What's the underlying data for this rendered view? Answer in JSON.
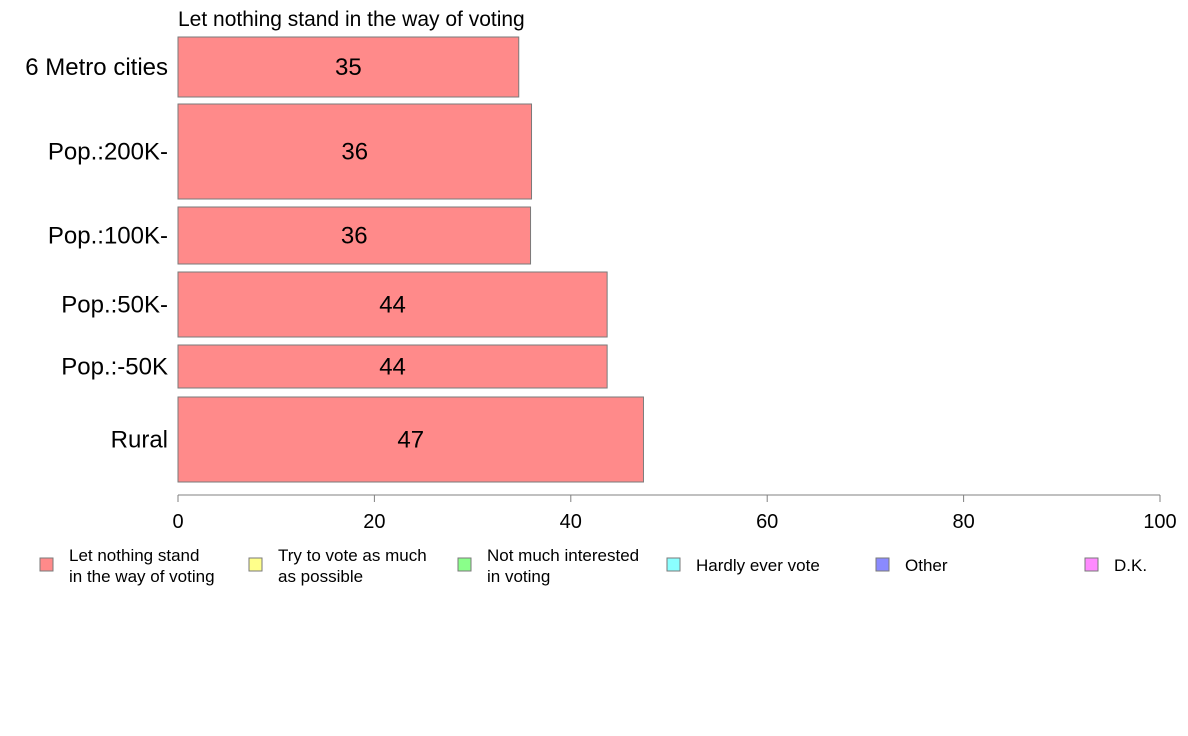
{
  "chart_data": {
    "type": "bar",
    "orientation": "horizontal",
    "stacked": true,
    "title": "Let nothing stand in the way of voting",
    "categories": [
      "6 Metro cities",
      "Pop.:200K-",
      "Pop.:100K-",
      "Pop.:50K-",
      "Pop.:-50K",
      "Rural"
    ],
    "series": [
      {
        "name": "Let nothing stand in the way of voting",
        "legend_lines": [
          "Let nothing stand",
          "in the way of voting"
        ],
        "color": "#ff8a8a",
        "values": [
          34.7,
          36.0,
          35.9,
          43.7,
          43.7,
          47.4
        ],
        "labels": [
          "35",
          "36",
          "36",
          "44",
          "44",
          "47"
        ]
      }
    ],
    "legend": [
      {
        "lines": [
          "Let nothing stand",
          "in the way of voting"
        ],
        "color": "#ff8a8a"
      },
      {
        "lines": [
          "Try to vote as much",
          "as possible"
        ],
        "color": "#ffff8a"
      },
      {
        "lines": [
          "Not much interested",
          "in voting"
        ],
        "color": "#8aff8a"
      },
      {
        "lines": [
          "Hardly ever vote"
        ],
        "color": "#8affff"
      },
      {
        "lines": [
          "Other"
        ],
        "color": "#8a8aff"
      },
      {
        "lines": [
          "D.K."
        ],
        "color": "#ff8aff"
      }
    ],
    "xlim": [
      0,
      100
    ],
    "xticks": [
      0,
      20,
      40,
      60,
      80,
      100
    ],
    "xtick_labels": [
      "0",
      "20",
      "40",
      "60",
      "80",
      "100"
    ],
    "grid": false,
    "legend_placement": "bottom"
  }
}
